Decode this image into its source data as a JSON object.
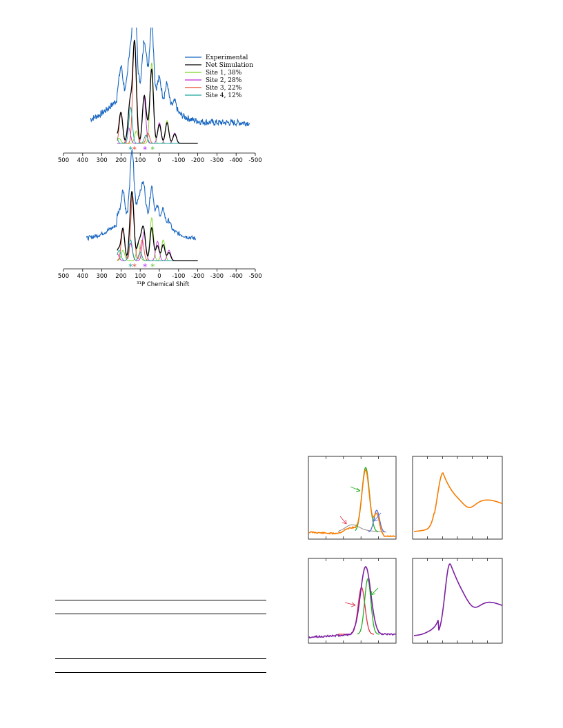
{
  "colors": {
    "experimental": "#1565c0",
    "net": "#000000",
    "site1": "#7ed321",
    "site2": "#c026d3",
    "site3": "#e8472e",
    "site4": "#1aa39a",
    "asterisk_site4": "#1aa39a",
    "asterisk_site3": "#e8472e",
    "asterisk_site2": "#b026ff",
    "asterisk_site1": "#5cc23a",
    "orange": "#f57c00",
    "purple": "#7b1fa2",
    "green": "#22b022",
    "red": "#e0304a",
    "blue": "#5b6fd6",
    "grey": "#888888"
  },
  "chart_data": [
    {
      "type": "line",
      "panel": "top",
      "xlabel": "",
      "xlim": [
        500,
        -500
      ],
      "xticks": [
        "500",
        "400",
        "300",
        "200",
        "100",
        "0",
        "-100",
        "-200",
        "-300",
        "-400",
        "-500"
      ],
      "legend": {
        "placement": "top-right",
        "entries": [
          "Experimental",
          "Net Simulation",
          "Site 1, 38%",
          "Site 2, 28%",
          "Site 3, 22%",
          "Site 4, 12%"
        ]
      },
      "series": [
        {
          "name": "Site 1, 38%",
          "peaks": [
            [
              40,
              0.78
            ],
            [
              -40,
              0.22
            ],
            [
              120,
              0.12
            ],
            [
              210,
              0.05
            ]
          ]
        },
        {
          "name": "Site 2, 28%",
          "peaks": [
            [
              80,
              0.45
            ],
            [
              0,
              0.2
            ],
            [
              160,
              0.15
            ],
            [
              -80,
              0.1
            ]
          ]
        },
        {
          "name": "Site 3, 22%",
          "peaks": [
            [
              130,
              1.0
            ],
            [
              200,
              0.3
            ],
            [
              60,
              0.1
            ],
            [
              250,
              0.06
            ]
          ]
        },
        {
          "name": "Site 4, 12%",
          "peaks": [
            [
              150,
              0.35
            ],
            [
              230,
              0.1
            ],
            [
              70,
              0.08
            ]
          ]
        }
      ],
      "markers": [
        {
          "label": "*",
          "x": 150,
          "site": "Site 4"
        },
        {
          "label": "*",
          "x": 130,
          "site": "Site 3"
        },
        {
          "label": "*",
          "x": 75,
          "site": "Site 2"
        },
        {
          "label": "*",
          "x": 35,
          "site": "Site 1"
        }
      ]
    },
    {
      "type": "line",
      "panel": "middle",
      "xlabel": "31P Chemical Shift",
      "xlim": [
        500,
        -500
      ],
      "xticks": [
        "500",
        "400",
        "300",
        "200",
        "100",
        "0",
        "-100",
        "-200",
        "-300",
        "-400",
        "-500"
      ],
      "series": [
        {
          "name": "Site 1, 38%",
          "peaks": [
            [
              40,
              0.62
            ],
            [
              -20,
              0.3
            ],
            [
              110,
              0.25
            ],
            [
              190,
              0.15
            ]
          ]
        },
        {
          "name": "Site 2, 28%",
          "peaks": [
            [
              80,
              0.42
            ],
            [
              10,
              0.28
            ],
            [
              150,
              0.25
            ],
            [
              -50,
              0.15
            ],
            [
              220,
              0.1
            ]
          ]
        },
        {
          "name": "Site 3, 22%",
          "peaks": [
            [
              140,
              0.95
            ],
            [
              190,
              0.45
            ],
            [
              90,
              0.3
            ],
            [
              240,
              0.1
            ]
          ]
        },
        {
          "name": "Site 4, 12%",
          "peaks": [
            [
              150,
              0.3
            ],
            [
              210,
              0.15
            ],
            [
              100,
              0.12
            ]
          ]
        }
      ],
      "markers": [
        {
          "label": "*",
          "x": 150,
          "site": "Site 4"
        },
        {
          "label": "*",
          "x": 130,
          "site": "Site 3"
        },
        {
          "label": "*",
          "x": 75,
          "site": "Site 2"
        },
        {
          "label": "*",
          "x": 35,
          "site": "Site 1"
        }
      ]
    },
    {
      "type": "line",
      "panel": "bottom-left-orange",
      "series": [
        {
          "name": "orange",
          "color_key": "orange"
        },
        {
          "name": "green",
          "color_key": "green"
        },
        {
          "name": "blue",
          "color_key": "blue"
        },
        {
          "name": "grey",
          "color_key": "grey"
        }
      ]
    },
    {
      "type": "line",
      "panel": "bottom-right-orange",
      "series": [
        {
          "name": "orange",
          "color_key": "orange"
        }
      ]
    },
    {
      "type": "line",
      "panel": "bottom-left-purple",
      "series": [
        {
          "name": "purple",
          "color_key": "purple"
        },
        {
          "name": "green",
          "color_key": "green"
        },
        {
          "name": "red",
          "color_key": "red"
        }
      ]
    },
    {
      "type": "line",
      "panel": "bottom-right-purple",
      "series": [
        {
          "name": "purple",
          "color_key": "purple"
        }
      ]
    }
  ],
  "axis_title_super": "31",
  "axis_title_main": "P Chemical Shift"
}
